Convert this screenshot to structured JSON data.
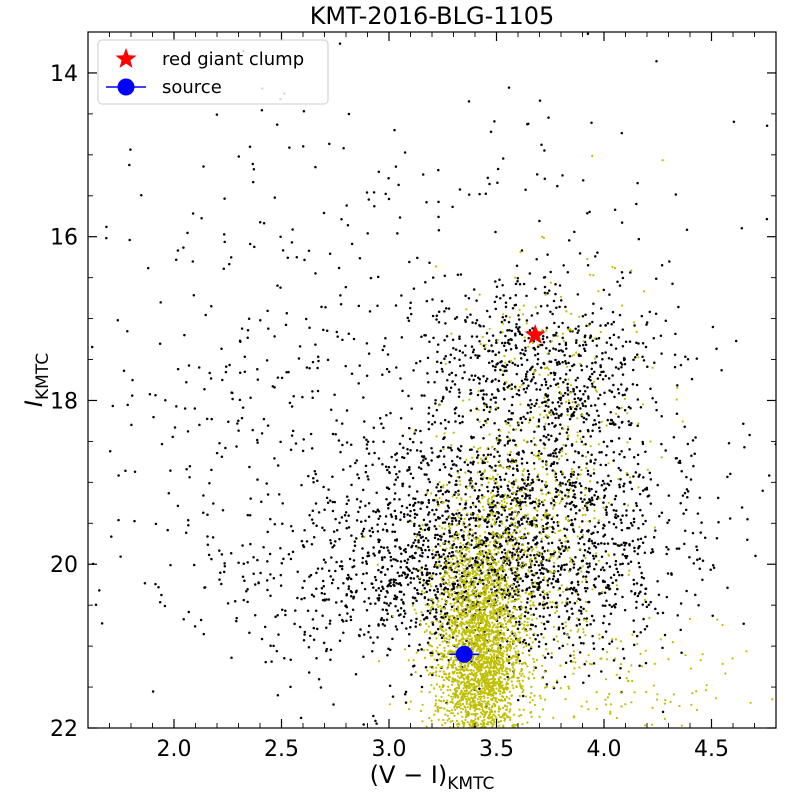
{
  "chart_data": {
    "type": "scatter",
    "title": "KMT-2016-BLG-1105",
    "xlabel": {
      "main": "(V − I)",
      "sub": "KMTC"
    },
    "ylabel": {
      "main": "I",
      "sub": "KMTC"
    },
    "xlim": [
      1.6,
      4.8
    ],
    "ylim": [
      22,
      13.5
    ],
    "y_inverted": true,
    "grid": false,
    "legend_position": "top-left",
    "x_ticks": [
      {
        "value": 2.0,
        "label": "2.0"
      },
      {
        "value": 2.5,
        "label": "2.5"
      },
      {
        "value": 3.0,
        "label": "3.0"
      },
      {
        "value": 3.5,
        "label": "3.5"
      },
      {
        "value": 4.0,
        "label": "4.0"
      },
      {
        "value": 4.5,
        "label": "4.5"
      }
    ],
    "y_ticks": [
      {
        "value": 14,
        "label": "14"
      },
      {
        "value": 16,
        "label": "16"
      },
      {
        "value": 18,
        "label": "18"
      },
      {
        "value": 20,
        "label": "20"
      },
      {
        "value": 22,
        "label": "22"
      }
    ],
    "colors": {
      "field_stars": "#000000",
      "hst_stars": "#bfbf00",
      "clump": "#ff0000",
      "source": "#0000ff"
    },
    "field_stars": {
      "description_of_distribution": "dense black ground-based field-star CMD: broad giant branch / red clump centred near (V-I)=3.65, I=17.2, main-sequence turn-off region near (V-I)=3.3-3.6, I=19.5-20.5, sparse scatter across full range",
      "components": [
        {
          "n": 1800,
          "x_mean": 3.55,
          "x_sd": 0.42,
          "y_mean": 19.6,
          "y_sd": 0.75
        },
        {
          "n": 700,
          "x_mean": 3.7,
          "x_sd": 0.28,
          "y_mean": 17.6,
          "y_sd": 0.6
        },
        {
          "n": 600,
          "x_mean": 3.25,
          "x_sd": 0.45,
          "y_mean": 20.3,
          "y_sd": 0.45
        },
        {
          "n": 400,
          "x_mean": 2.6,
          "x_sd": 0.6,
          "y_mean": 18.8,
          "y_sd": 1.6
        },
        {
          "n": 250,
          "x_mean": 3.2,
          "x_sd": 0.9,
          "y_mean": 16.5,
          "y_sd": 2.0
        }
      ]
    },
    "hst_stars": {
      "description_of_distribution": "yellow HST-calibrated stars: dense main sequence near (V-I)=3.35-3.5, I=20-22 plus redder giant branch",
      "components": [
        {
          "n": 2600,
          "x_mean": 3.42,
          "x_sd": 0.1,
          "y_mean": 21.2,
          "y_sd": 0.7
        },
        {
          "n": 600,
          "x_mean": 3.55,
          "x_sd": 0.2,
          "y_mean": 19.8,
          "y_sd": 0.7
        },
        {
          "n": 250,
          "x_mean": 3.75,
          "x_sd": 0.25,
          "y_mean": 18.2,
          "y_sd": 1.0
        },
        {
          "n": 180,
          "x_mean": 4.0,
          "x_sd": 0.45,
          "y_mean": 21.4,
          "y_sd": 0.45
        }
      ]
    },
    "series": [
      {
        "name": "red giant clump",
        "marker": "star",
        "color": "#ff0000",
        "x": 3.68,
        "y": 17.2
      },
      {
        "name": "source",
        "marker": "circle",
        "color": "#0000ff",
        "x": 3.35,
        "y": 21.1,
        "x_err": 0.07
      }
    ]
  }
}
